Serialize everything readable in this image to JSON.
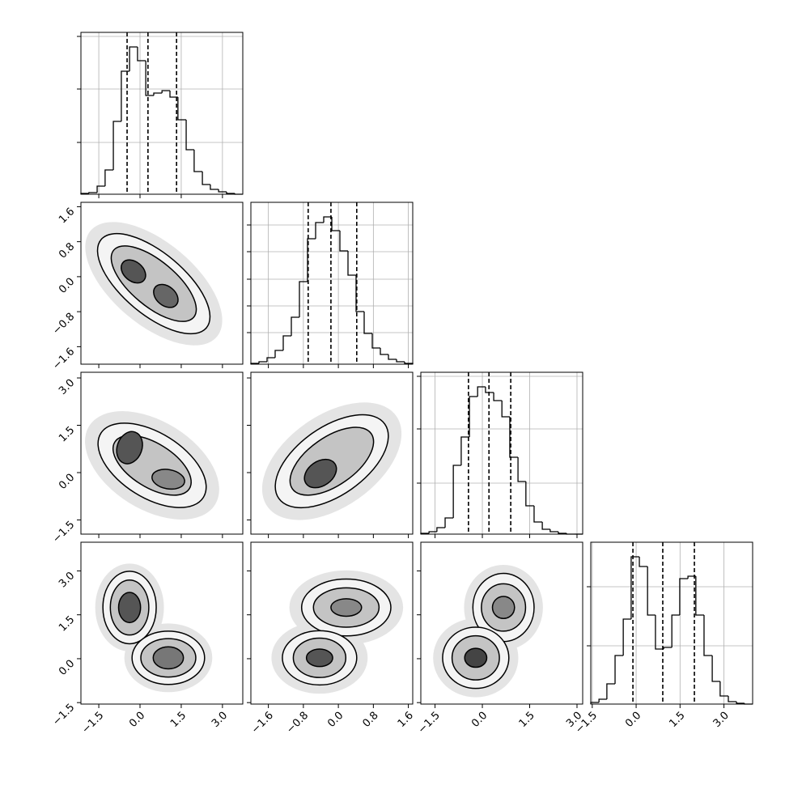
{
  "chart_data": {
    "type": "corner",
    "variables": [
      {
        "lim": [
          -2.15,
          3.74
        ],
        "ticks": [
          {
            "value": -1.5,
            "label": "−1.5"
          },
          {
            "value": 0,
            "label": "0.0"
          },
          1.5,
          {
            "value": 3,
            "label": "3.0"
          }
        ]
      },
      {
        "lim": [
          -2.0,
          1.7
        ],
        "ticks": [
          {
            "value": -1.6,
            "label": "−1.6"
          },
          {
            "value": -0.8,
            "label": "−0.8"
          },
          {
            "value": 0,
            "label": "0.0"
          },
          0.8,
          1.6
        ]
      },
      {
        "lim": [
          -1.95,
          3.18
        ],
        "ticks": [
          {
            "value": -1.5,
            "label": "−1.5"
          },
          {
            "value": 0,
            "label": "0.0"
          },
          1.5,
          {
            "value": 3,
            "label": "3.0"
          }
        ]
      },
      {
        "lim": [
          -1.55,
          3.98
        ],
        "ticks": [
          {
            "value": -1.5,
            "label": "−1.5"
          },
          {
            "value": 0,
            "label": "0.0"
          },
          1.5,
          {
            "value": 3,
            "label": "3.0"
          }
        ]
      }
    ],
    "histograms": [
      {
        "variable": 0,
        "color": "#000000",
        "ylim": [
          0,
          200
        ],
        "yticks": [
          64,
          130,
          195
        ],
        "quantiles": [
          -0.47,
          0.29,
          1.33
        ],
        "bins": [
          -2.15,
          -1.86,
          -1.56,
          -1.27,
          -0.97,
          -0.68,
          -0.38,
          -0.09,
          0.21,
          0.5,
          0.8,
          1.09,
          1.38,
          1.68,
          1.97,
          2.27,
          2.56,
          2.86,
          3.15,
          3.45,
          3.74
        ],
        "counts": [
          1,
          2,
          10,
          30,
          90,
          152,
          182,
          165,
          122,
          125,
          128,
          120,
          92,
          55,
          28,
          12,
          6,
          3,
          1,
          0
        ]
      },
      {
        "variable": 1,
        "color": "#000000",
        "ylim": [
          0,
          200
        ],
        "yticks": [
          39,
          72,
          105,
          139,
          172
        ],
        "quantiles": [
          -0.69,
          -0.17,
          0.42
        ],
        "bins": [
          -2.0,
          -1.815,
          -1.63,
          -1.445,
          -1.26,
          -1.075,
          -0.89,
          -0.705,
          -0.52,
          -0.335,
          -0.15,
          0.035,
          0.22,
          0.405,
          0.59,
          0.775,
          0.96,
          1.145,
          1.33,
          1.515,
          1.7
        ],
        "counts": [
          1,
          3,
          8,
          17,
          35,
          58,
          102,
          155,
          175,
          182,
          165,
          140,
          110,
          65,
          38,
          20,
          12,
          6,
          3,
          1
        ]
      },
      {
        "variable": 2,
        "color": "#000000",
        "ylim": [
          0,
          200
        ],
        "yticks": [
          63,
          130,
          195
        ],
        "quantiles": [
          -0.44,
          0.21,
          0.9
        ],
        "bins": [
          -1.95,
          -1.69,
          -1.44,
          -1.18,
          -0.92,
          -0.67,
          -0.41,
          -0.15,
          0.1,
          0.36,
          0.62,
          0.87,
          1.13,
          1.38,
          1.64,
          1.9,
          2.15,
          2.41,
          2.67,
          2.92,
          3.18
        ],
        "counts": [
          1,
          3,
          8,
          20,
          85,
          120,
          170,
          182,
          175,
          165,
          145,
          95,
          65,
          35,
          15,
          6,
          3,
          1,
          0,
          0
        ]
      },
      {
        "variable": 3,
        "color": "#000000",
        "ylim": [
          0,
          200
        ],
        "yticks": [
          72,
          145
        ],
        "quantiles": [
          -0.11,
          0.91,
          1.99
        ],
        "bins": [
          -1.55,
          -1.27,
          -1.0,
          -0.72,
          -0.44,
          -0.17,
          0.11,
          0.39,
          0.66,
          0.94,
          1.22,
          1.49,
          1.77,
          2.04,
          2.32,
          2.6,
          2.87,
          3.15,
          3.43,
          3.7,
          3.98
        ],
        "counts": [
          2,
          6,
          25,
          60,
          105,
          182,
          170,
          110,
          68,
          70,
          110,
          155,
          158,
          110,
          60,
          28,
          10,
          3,
          1,
          0
        ]
      }
    ],
    "panels": [
      {
        "x": 0,
        "y": 1,
        "contours": [
          {
            "center": [
              0.5,
              -0.16
            ],
            "radii": [
              3.0,
              1.5
            ],
            "angle": 40,
            "fill": "#e4e4e4",
            "stroke": "none"
          },
          {
            "center": [
              0.5,
              -0.16
            ],
            "radii": [
              2.5,
              1.12
            ],
            "angle": 40,
            "fill": "#f4f4f4",
            "stroke": "#000000"
          },
          {
            "center": [
              0.5,
              -0.16
            ],
            "radii": [
              1.9,
              0.82
            ],
            "angle": 40,
            "fill": "#c4c4c4",
            "stroke": "#000000"
          },
          {
            "center": [
              -0.24,
              0.12
            ],
            "radii": [
              0.5,
              0.35
            ],
            "angle": 40,
            "fill": "#555555",
            "stroke": "#000000"
          },
          {
            "center": [
              0.94,
              -0.44
            ],
            "radii": [
              0.5,
              0.35
            ],
            "angle": 40,
            "fill": "#666666",
            "stroke": "#000000"
          }
        ]
      },
      {
        "x": 0,
        "y": 2,
        "contours": [
          {
            "center": [
              0.44,
              0.23
            ],
            "radii": [
              2.7,
              1.6
            ],
            "angle": 32,
            "fill": "#e4e4e4",
            "stroke": "none"
          },
          {
            "center": [
              0.44,
              0.23
            ],
            "radii": [
              2.2,
              1.18
            ],
            "angle": 32,
            "fill": "#f4f4f4",
            "stroke": "#000000"
          },
          {
            "center": [
              0.44,
              0.23
            ],
            "radii": [
              1.6,
              0.8
            ],
            "angle": 32,
            "fill": "#c4c4c4",
            "stroke": "#000000"
          },
          {
            "center": [
              -0.38,
              0.79
            ],
            "radii": [
              0.45,
              0.6
            ],
            "angle": 20,
            "fill": "#555555",
            "stroke": "#000000"
          },
          {
            "center": [
              1.03,
              -0.21
            ],
            "radii": [
              0.6,
              0.35
            ],
            "angle": 10,
            "fill": "#888888",
            "stroke": "#000000"
          }
        ]
      },
      {
        "x": 1,
        "y": 2,
        "contours": [
          {
            "center": [
              -0.15,
              0.36
            ],
            "radii": [
              1.8,
              1.05
            ],
            "angle": -35,
            "fill": "#e4e4e4",
            "stroke": "none"
          },
          {
            "center": [
              -0.15,
              0.36
            ],
            "radii": [
              1.48,
              0.78
            ],
            "angle": -35,
            "fill": "#f4f4f4",
            "stroke": "#000000"
          },
          {
            "center": [
              -0.15,
              0.36
            ],
            "radii": [
              1.1,
              0.55
            ],
            "angle": -35,
            "fill": "#c4c4c4",
            "stroke": "#000000"
          },
          {
            "center": [
              -0.41,
              -0.03
            ],
            "radii": [
              0.4,
              0.28
            ],
            "angle": -35,
            "fill": "#555555",
            "stroke": "#000000"
          }
        ]
      },
      {
        "x": 0,
        "y": 3,
        "contours": [
          {
            "center": [
              -0.38,
              1.75
            ],
            "radii": [
              1.25,
              1.6
            ],
            "angle": 0,
            "fill": "#e4e4e4",
            "stroke": "none"
          },
          {
            "center": [
              1.03,
              0.03
            ],
            "radii": [
              1.6,
              1.25
            ],
            "angle": 0,
            "fill": "#e4e4e4",
            "stroke": "none"
          },
          {
            "center": [
              -0.38,
              1.75
            ],
            "radii": [
              0.97,
              1.32
            ],
            "angle": 0,
            "fill": "#f4f4f4",
            "stroke": "#000000"
          },
          {
            "center": [
              1.03,
              0.03
            ],
            "radii": [
              1.32,
              0.97
            ],
            "angle": 0,
            "fill": "#f4f4f4",
            "stroke": "#000000"
          },
          {
            "center": [
              -0.38,
              1.75
            ],
            "radii": [
              0.7,
              1.0
            ],
            "angle": 0,
            "fill": "#c4c4c4",
            "stroke": "#000000"
          },
          {
            "center": [
              1.03,
              0.03
            ],
            "radii": [
              1.0,
              0.7
            ],
            "angle": 0,
            "fill": "#c4c4c4",
            "stroke": "#000000"
          },
          {
            "center": [
              -0.38,
              1.75
            ],
            "radii": [
              0.4,
              0.55
            ],
            "angle": 0,
            "fill": "#555555",
            "stroke": "#000000"
          },
          {
            "center": [
              1.03,
              0.03
            ],
            "radii": [
              0.55,
              0.4
            ],
            "angle": 0,
            "fill": "#777777",
            "stroke": "#000000"
          }
        ]
      },
      {
        "x": 1,
        "y": 3,
        "contours": [
          {
            "center": [
              0.18,
              1.75
            ],
            "radii": [
              1.3,
              0.85
            ],
            "angle": 0,
            "fill": "#e4e4e4",
            "stroke": "none"
          },
          {
            "center": [
              -0.43,
              0.03
            ],
            "radii": [
              1.1,
              0.82
            ],
            "angle": 0,
            "fill": "#e4e4e4",
            "stroke": "none"
          },
          {
            "center": [
              0.18,
              1.75
            ],
            "radii": [
              1.02,
              0.65
            ],
            "angle": 0,
            "fill": "#f4f4f4",
            "stroke": "#000000"
          },
          {
            "center": [
              -0.43,
              0.03
            ],
            "radii": [
              0.85,
              0.62
            ],
            "angle": 0,
            "fill": "#f4f4f4",
            "stroke": "#000000"
          },
          {
            "center": [
              0.18,
              1.75
            ],
            "radii": [
              0.75,
              0.45
            ],
            "angle": 0,
            "fill": "#c4c4c4",
            "stroke": "#000000"
          },
          {
            "center": [
              -0.43,
              0.03
            ],
            "radii": [
              0.6,
              0.45
            ],
            "angle": 0,
            "fill": "#c4c4c4",
            "stroke": "#000000"
          },
          {
            "center": [
              0.18,
              1.75
            ],
            "radii": [
              0.35,
              0.2
            ],
            "angle": 0,
            "fill": "#888888",
            "stroke": "#000000"
          },
          {
            "center": [
              -0.43,
              0.03
            ],
            "radii": [
              0.3,
              0.2
            ],
            "angle": 0,
            "fill": "#555555",
            "stroke": "#000000"
          }
        ]
      },
      {
        "x": 2,
        "y": 3,
        "contours": [
          {
            "center": [
              0.67,
              1.75
            ],
            "radii": [
              1.25,
              1.35
            ],
            "angle": 0,
            "fill": "#e4e4e4",
            "stroke": "none"
          },
          {
            "center": [
              -0.21,
              0.03
            ],
            "radii": [
              1.35,
              1.25
            ],
            "angle": 0,
            "fill": "#e4e4e4",
            "stroke": "none"
          },
          {
            "center": [
              0.67,
              1.75
            ],
            "radii": [
              0.97,
              1.08
            ],
            "angle": 0,
            "fill": "#f4f4f4",
            "stroke": "#000000"
          },
          {
            "center": [
              -0.21,
              0.03
            ],
            "radii": [
              1.05,
              0.97
            ],
            "angle": 0,
            "fill": "#f4f4f4",
            "stroke": "#000000"
          },
          {
            "center": [
              0.67,
              1.75
            ],
            "radii": [
              0.7,
              0.75
            ],
            "angle": 0,
            "fill": "#c4c4c4",
            "stroke": "#000000"
          },
          {
            "center": [
              -0.21,
              0.03
            ],
            "radii": [
              0.75,
              0.7
            ],
            "angle": 0,
            "fill": "#c4c4c4",
            "stroke": "#000000"
          },
          {
            "center": [
              0.67,
              1.75
            ],
            "radii": [
              0.35,
              0.35
            ],
            "angle": 0,
            "fill": "#888888",
            "stroke": "#000000"
          },
          {
            "center": [
              -0.21,
              0.03
            ],
            "radii": [
              0.35,
              0.3
            ],
            "angle": 0,
            "fill": "#444444",
            "stroke": "#000000"
          }
        ]
      }
    ]
  }
}
